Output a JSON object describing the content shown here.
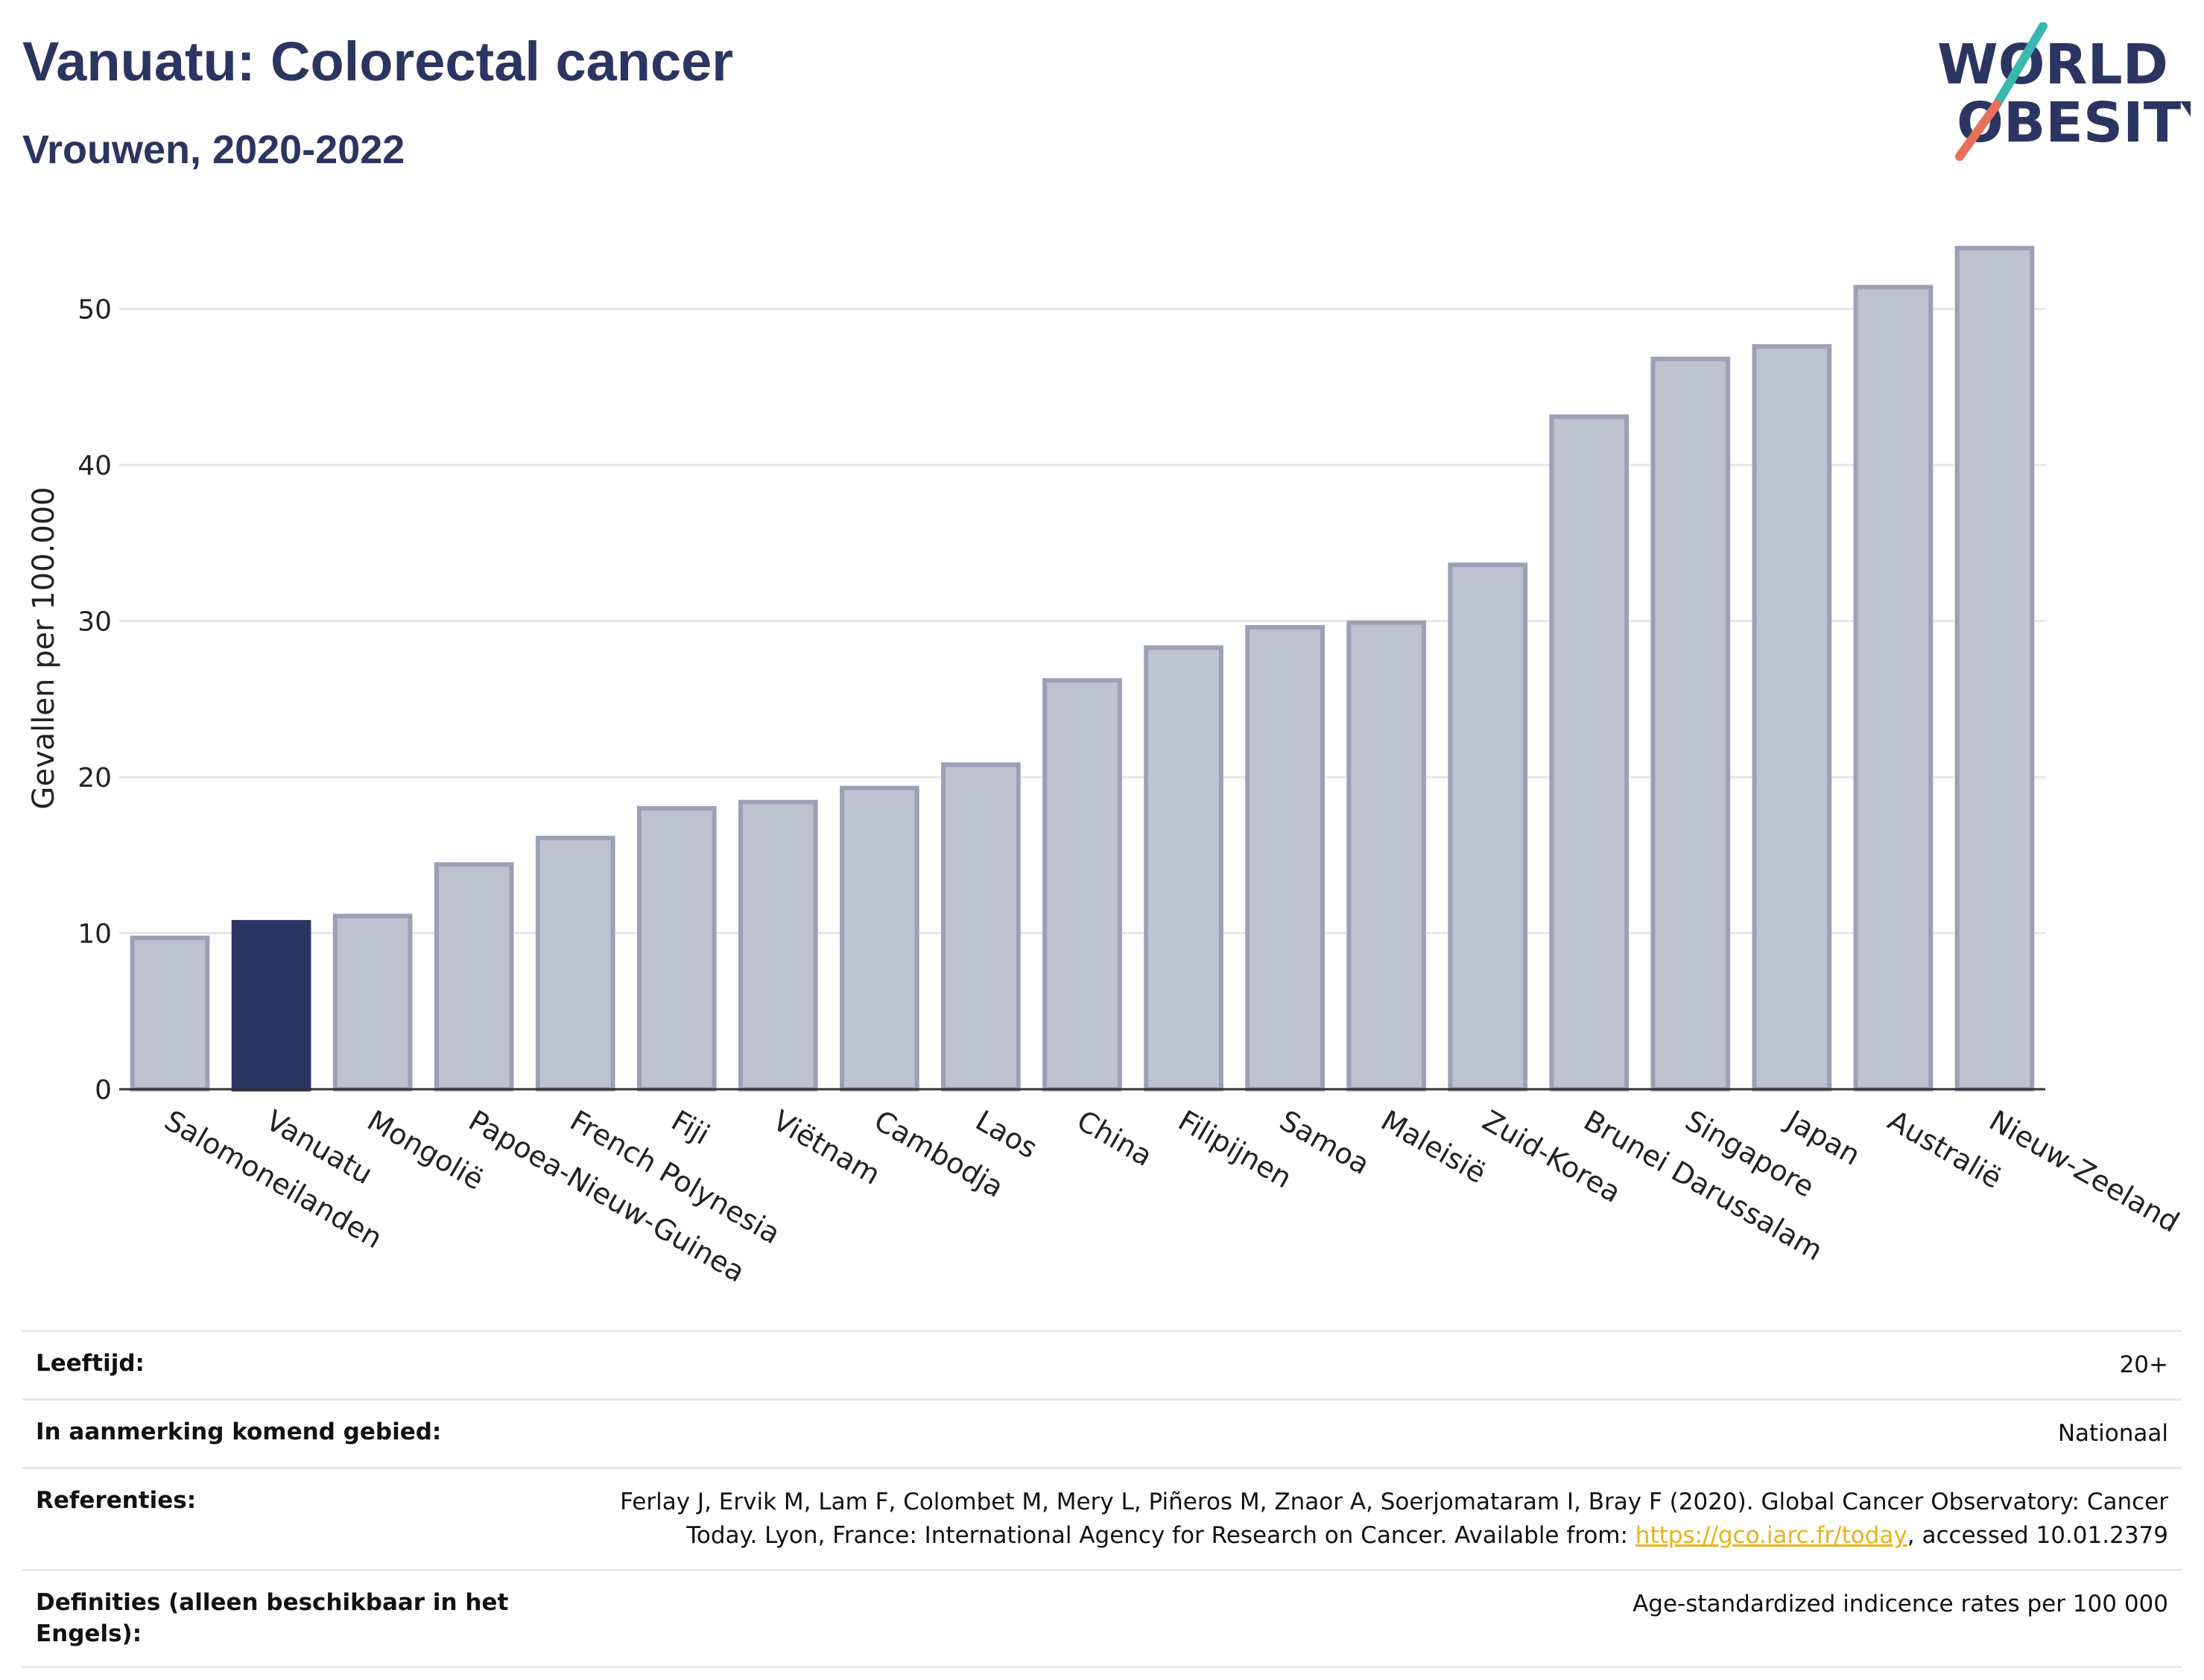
{
  "header": {
    "title": "Vanuatu: Colorectal cancer",
    "subtitle": "Vrouwen, 2020-2022",
    "logo_line1": "WORLD",
    "logo_line2": "OBESITY"
  },
  "colors": {
    "highlight": "#2b3561",
    "bar_fill": "#bec1ce",
    "bar_stroke": "#9ba0b6",
    "title": "#2b3561",
    "link": "#e8b21a"
  },
  "chart_data": {
    "type": "bar",
    "ylabel": "Gevallen per 100.000",
    "ylim": [
      0,
      55
    ],
    "yticks": [
      0,
      10,
      20,
      30,
      40,
      50
    ],
    "grid": true,
    "highlight": "Vanuatu",
    "categories": [
      "Salomoneilanden",
      "Vanuatu",
      "Mongolië",
      "Papoea-Nieuw-Guinea",
      "French Polynesia",
      "Fiji",
      "Viëtnam",
      "Cambodja",
      "Laos",
      "China",
      "Filipijnen",
      "Samoa",
      "Maleisië",
      "Zuid-Korea",
      "Brunei Darussalam",
      "Singapore",
      "Japan",
      "Australië",
      "Nieuw-Zeeland"
    ],
    "values": [
      9.7,
      10.7,
      11.1,
      14.4,
      16.1,
      18.0,
      18.4,
      19.3,
      20.8,
      26.2,
      28.3,
      29.6,
      29.9,
      33.6,
      43.1,
      46.8,
      47.6,
      51.4,
      53.9
    ]
  },
  "info": {
    "age_label": "Leeftijd:",
    "age_value": "20+",
    "area_label": "In aanmerking komend gebied:",
    "area_value": "Nationaal",
    "ref_label": "Referenties:",
    "ref_value_pre": "Ferlay J, Ervik M, Lam F, Colombet M, Mery L, Piñeros M, Znaor A, Soerjomataram I, Bray F (2020). Global Cancer Observatory: Cancer Today. Lyon, France: International Agency for Research on Cancer. Available from: ",
    "ref_link": "https://gco.iarc.fr/today",
    "ref_value_post": ", accessed 10.01.2379",
    "def_label": "Definities (alleen beschikbaar in het Engels):",
    "def_value": "Age-standardized indicence rates per 100 000"
  }
}
